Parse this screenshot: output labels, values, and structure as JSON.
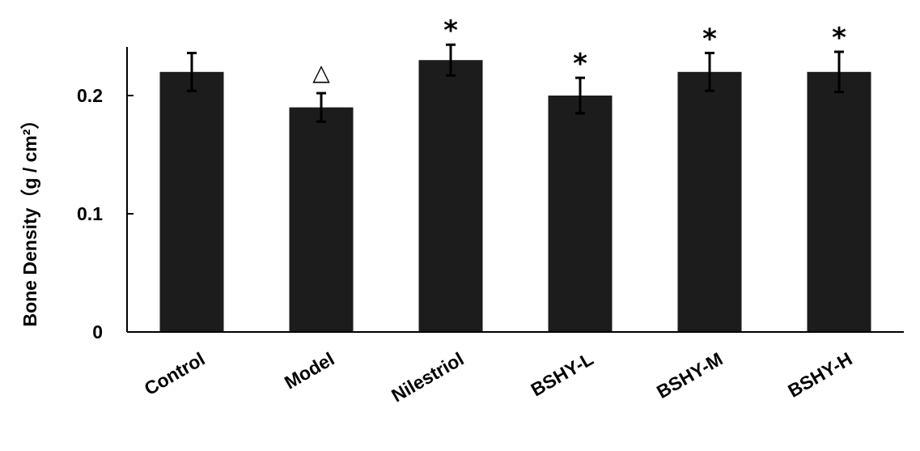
{
  "chart_data": {
    "type": "bar",
    "title": "",
    "xlabel": "",
    "ylabel": "Bone Density（g / cm²）",
    "ylim": [
      0,
      0.24
    ],
    "yticks": [
      0,
      0.1,
      0.2
    ],
    "ytick_labels": [
      "0",
      "0.1",
      "0.2"
    ],
    "grid": false,
    "bar_color": "#1c1c1c",
    "categories": [
      "Control",
      "Model",
      "Nilestriol",
      "BSHY-L",
      "BSHY-M",
      "BSHY-H"
    ],
    "values": [
      0.22,
      0.19,
      0.23,
      0.2,
      0.22,
      0.22
    ],
    "errors": [
      0.016,
      0.012,
      0.013,
      0.015,
      0.016,
      0.017
    ],
    "annotations": [
      "",
      "△",
      "*",
      "*",
      "*",
      "*"
    ]
  }
}
